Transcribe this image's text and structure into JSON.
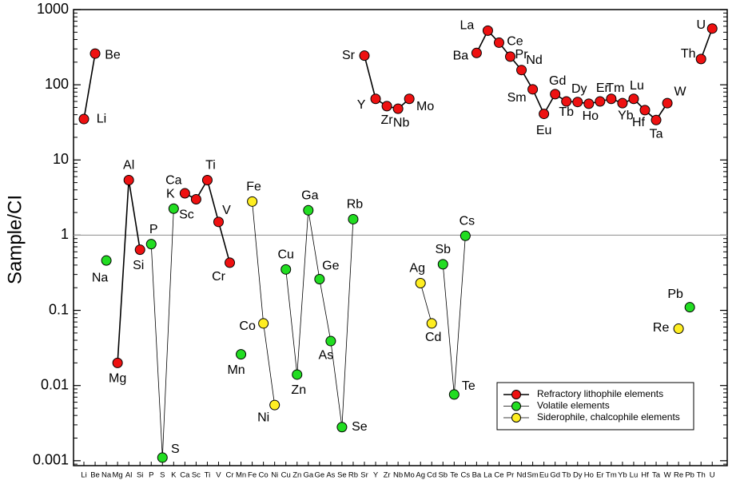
{
  "chart_data": {
    "type": "line",
    "y_label": "Sample/CI",
    "categories": [
      "Li",
      "Be",
      "Na",
      "Mg",
      "Al",
      "Si",
      "P",
      "S",
      "K",
      "Ca",
      "Sc",
      "Ti",
      "V",
      "Cr",
      "Mn",
      "Fe",
      "Co",
      "Ni",
      "Cu",
      "Zn",
      "Ga",
      "Ge",
      "As",
      "Se",
      "Rb",
      "Sr",
      "Y",
      "Zr",
      "Nb",
      "Mo",
      "Ag",
      "Cd",
      "Sb",
      "Te",
      "Cs",
      "Ba",
      "La",
      "Ce",
      "Pr",
      "Nd",
      "Sm",
      "Eu",
      "Gd",
      "Tb",
      "Dy",
      "Ho",
      "Er",
      "Tm",
      "Yb",
      "Lu",
      "Hf",
      "Ta",
      "W",
      "Re",
      "Pb",
      "Th",
      "U"
    ],
    "series": [
      {
        "name": "Refractory lithophile elements",
        "color": "#ee1111",
        "line_color": "#000000",
        "values": [
          35,
          260,
          null,
          0.02,
          5.4,
          0.64,
          null,
          null,
          null,
          3.6,
          3.0,
          5.4,
          1.5,
          0.43,
          null,
          null,
          null,
          null,
          null,
          null,
          null,
          null,
          null,
          null,
          null,
          244,
          65,
          52,
          48,
          65,
          null,
          null,
          null,
          null,
          null,
          265,
          525,
          363,
          237,
          157,
          87,
          41,
          75,
          60,
          59,
          56,
          60,
          65,
          57,
          65,
          46,
          34,
          57,
          null,
          null,
          220,
          560
        ]
      },
      {
        "name": "Volatile elements",
        "color": "#22dd22",
        "line_color": "#000000",
        "values": [
          null,
          null,
          0.46,
          null,
          null,
          null,
          0.76,
          0.0011,
          2.25,
          null,
          null,
          null,
          null,
          null,
          0.026,
          null,
          null,
          null,
          0.35,
          0.014,
          2.14,
          0.26,
          0.039,
          0.0028,
          1.63,
          null,
          null,
          null,
          null,
          null,
          null,
          null,
          0.41,
          0.0076,
          0.98,
          null,
          null,
          null,
          null,
          null,
          null,
          null,
          null,
          null,
          null,
          null,
          null,
          null,
          null,
          null,
          null,
          null,
          null,
          null,
          0.11,
          null,
          null
        ]
      },
      {
        "name": "Siderophile, chalcophile elements",
        "color": "#ffee22",
        "line_color": "#000000",
        "values": [
          null,
          null,
          null,
          null,
          null,
          null,
          null,
          null,
          null,
          null,
          null,
          null,
          null,
          null,
          null,
          2.8,
          0.067,
          0.0055,
          null,
          null,
          null,
          null,
          null,
          null,
          null,
          null,
          null,
          null,
          null,
          null,
          0.23,
          0.067,
          null,
          null,
          null,
          null,
          null,
          null,
          null,
          null,
          null,
          null,
          null,
          null,
          null,
          null,
          null,
          null,
          null,
          null,
          null,
          null,
          null,
          0.057,
          null,
          null,
          null
        ]
      }
    ],
    "ylim": [
      0.00086,
      1000
    ],
    "yticks": [
      0.001,
      0.01,
      0.1,
      1,
      10,
      100,
      1000
    ],
    "log_y": true,
    "reference_line": 1,
    "legend": "lower right"
  }
}
